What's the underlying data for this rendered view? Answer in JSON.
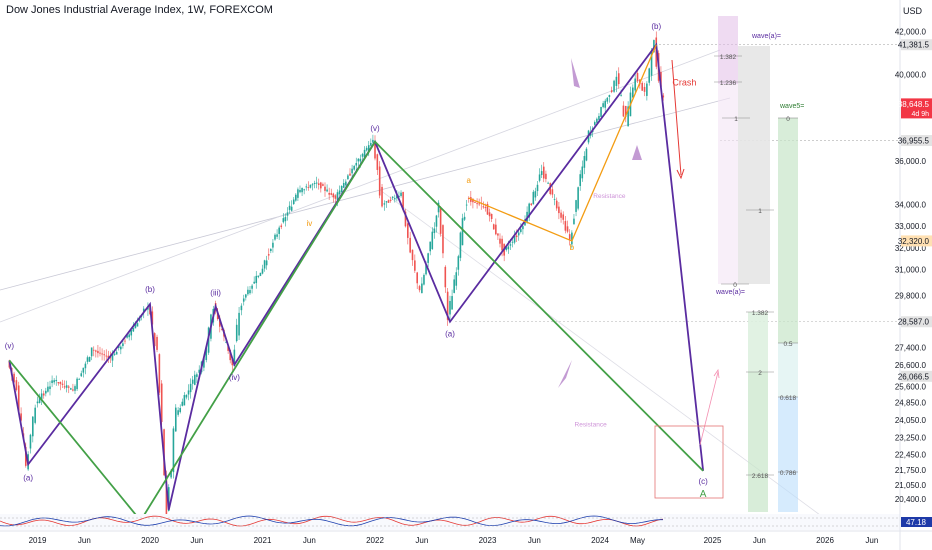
{
  "header": {
    "symbol_title": "Dow Jones Industrial Average Index, 1W, FOREXCOM"
  },
  "price_axis": {
    "currency": "USD"
  },
  "chart_data": {
    "type": "line",
    "title": "Dow Jones Industrial Average Index, 1W, FOREXCOM",
    "ylim": [
      19800,
      42800
    ],
    "xlim": [
      "2018-09",
      "2026-09"
    ],
    "x_ticks": [
      "2019",
      "Jun",
      "2020",
      "Jun",
      "2021",
      "Jun",
      "2022",
      "Jun",
      "2023",
      "Jun",
      "2024",
      "May",
      "2025",
      "Jun",
      "2026",
      "Jun"
    ],
    "y_ticks": [
      "42,000.0",
      "40,000.0",
      "36,000.0",
      "34,000.0",
      "33,000.0",
      "32,000.0",
      "31,000.0",
      "29,800.0",
      "27,400.0",
      "26,600.0",
      "25,600.0",
      "24,850.0",
      "24,050.0",
      "23,250.0",
      "22,450.0",
      "21,750.0",
      "21,050.0",
      "20,400.0"
    ],
    "price_tags": [
      {
        "label": "41,381.5",
        "color": "#e3e3e3",
        "text_color": "#131722"
      },
      {
        "label": "38,648.5",
        "sub": "4d 9h",
        "color": "#f23645",
        "text_color": "#ffffff"
      },
      {
        "label": "36,955.5",
        "color": "#e3e3e3",
        "text_color": "#131722"
      },
      {
        "label": "32,320.0",
        "color": "#ffe0b2",
        "text_color": "#131722"
      },
      {
        "label": "28,587.0",
        "color": "#e3e3e3",
        "text_color": "#131722"
      },
      {
        "label": "26,066.5",
        "color": "#e3e3e3",
        "text_color": "#131722"
      }
    ],
    "price_series": [
      {
        "x": "2018-10",
        "y": 26800
      },
      {
        "x": "2018-11",
        "y": 25500
      },
      {
        "x": "2018-12",
        "y": 22000
      },
      {
        "x": "2019-01",
        "y": 24800
      },
      {
        "x": "2019-03",
        "y": 25900
      },
      {
        "x": "2019-05",
        "y": 25400
      },
      {
        "x": "2019-07",
        "y": 27300
      },
      {
        "x": "2019-09",
        "y": 26900
      },
      {
        "x": "2019-11",
        "y": 28000
      },
      {
        "x": "2020-01",
        "y": 29400
      },
      {
        "x": "2020-02",
        "y": 27000
      },
      {
        "x": "2020-03",
        "y": 19900
      },
      {
        "x": "2020-04",
        "y": 24300
      },
      {
        "x": "2020-06",
        "y": 26000
      },
      {
        "x": "2020-07",
        "y": 26800
      },
      {
        "x": "2020-08",
        "y": 29300
      },
      {
        "x": "2020-10",
        "y": 26600
      },
      {
        "x": "2020-11",
        "y": 29600
      },
      {
        "x": "2021-01",
        "y": 30900
      },
      {
        "x": "2021-03",
        "y": 32900
      },
      {
        "x": "2021-05",
        "y": 34600
      },
      {
        "x": "2021-07",
        "y": 35000
      },
      {
        "x": "2021-09",
        "y": 34300
      },
      {
        "x": "2021-11",
        "y": 35800
      },
      {
        "x": "2022-01",
        "y": 36900
      },
      {
        "x": "2022-02",
        "y": 34000
      },
      {
        "x": "2022-04",
        "y": 34500
      },
      {
        "x": "2022-05",
        "y": 31800
      },
      {
        "x": "2022-06",
        "y": 29900
      },
      {
        "x": "2022-08",
        "y": 33900
      },
      {
        "x": "2022-09",
        "y": 28700
      },
      {
        "x": "2022-11",
        "y": 34300
      },
      {
        "x": "2023-01",
        "y": 33900
      },
      {
        "x": "2023-03",
        "y": 31800
      },
      {
        "x": "2023-05",
        "y": 33000
      },
      {
        "x": "2023-07",
        "y": 35600
      },
      {
        "x": "2023-10",
        "y": 32400
      },
      {
        "x": "2023-12",
        "y": 37300
      },
      {
        "x": "2024-02",
        "y": 38900
      },
      {
        "x": "2024-03",
        "y": 39800
      },
      {
        "x": "2024-04",
        "y": 37800
      },
      {
        "x": "2024-05",
        "y": 40000
      },
      {
        "x": "2024-06",
        "y": 39100
      },
      {
        "x": "2024-07",
        "y": 41381.5
      },
      {
        "x": "2024-08",
        "y": 38648.5
      }
    ],
    "wave_lines": [
      {
        "name": "purple",
        "color": "#5a2ca0",
        "points": [
          {
            "x": "2018-10",
            "y": 26800
          },
          {
            "x": "2018-12",
            "y": 22000
          },
          {
            "x": "2020-01",
            "y": 29400
          },
          {
            "x": "2020-03",
            "y": 19900
          },
          {
            "x": "2020-08",
            "y": 29300
          },
          {
            "x": "2020-10",
            "y": 26600
          },
          {
            "x": "2022-01",
            "y": 36900
          },
          {
            "x": "2022-09",
            "y": 28587
          },
          {
            "x": "2024-07",
            "y": 41381.5
          },
          {
            "x": "2024-12",
            "y": 21700
          }
        ]
      },
      {
        "name": "green",
        "color": "#43a047",
        "points": [
          {
            "x": "2018-10",
            "y": 26800
          },
          {
            "x": "2019-12",
            "y": 19400
          },
          {
            "x": "2022-01",
            "y": 36900
          },
          {
            "x": "2024-12",
            "y": 21700
          }
        ]
      },
      {
        "name": "orange",
        "color": "#f39c12",
        "points": [
          {
            "x": "2022-11",
            "y": 34300
          },
          {
            "x": "2023-10",
            "y": 32320
          },
          {
            "x": "2024-07",
            "y": 41381.5
          }
        ]
      }
    ],
    "wave_labels": [
      {
        "text": "(v)",
        "x": "2018-10",
        "y": 27350,
        "color": "#5a2ca0"
      },
      {
        "text": "(a)",
        "x": "2018-12",
        "y": 21250,
        "color": "#5a2ca0"
      },
      {
        "text": "(b)",
        "x": "2020-01",
        "y": 29950,
        "color": "#5a2ca0"
      },
      {
        "text": "(iii)",
        "x": "2020-08",
        "y": 29800,
        "color": "#5a2ca0"
      },
      {
        "text": "(iv)",
        "x": "2020-10",
        "y": 25900,
        "color": "#5a2ca0"
      },
      {
        "text": "(v)",
        "x": "2022-01",
        "y": 37400,
        "color": "#5a2ca0"
      },
      {
        "text": "(a)",
        "x": "2022-09",
        "y": 27900,
        "color": "#5a2ca0"
      },
      {
        "text": "(b)",
        "x": "2024-07",
        "y": 42100,
        "color": "#5a2ca0"
      },
      {
        "text": "(c)",
        "x": "2024-12",
        "y": 21100,
        "color": "#5a2ca0"
      },
      {
        "text": "A",
        "x": "2024-12",
        "y": 20500,
        "color": "#43a047"
      },
      {
        "text": "a",
        "x": "2022-11",
        "y": 35000,
        "color": "#f39c12"
      },
      {
        "text": "b",
        "x": "2023-10",
        "y": 31900,
        "color": "#f39c12"
      },
      {
        "text": "iv",
        "x": "2021-06",
        "y": 33000,
        "color": "#f39c12"
      }
    ],
    "annotations": [
      {
        "text": "Crash",
        "x": "2024-10",
        "y": 39500,
        "color": "#e53935"
      },
      {
        "text": "Resistance",
        "x": "2024-02",
        "y": 34300,
        "color": "#ce93d8"
      },
      {
        "text": "Resistance",
        "x": "2023-12",
        "y": 23750,
        "color": "#ce93d8"
      }
    ],
    "fib_wave_a": {
      "label": "wave(a)=",
      "label_bottom": "wave(a)=",
      "levels": [
        "1.382",
        "1.236",
        "1",
        "0",
        "1",
        "1.382",
        "2",
        "2.618"
      ]
    },
    "fib_wave5": {
      "label": "wave5=",
      "levels": [
        "0",
        "0.5",
        "0.618",
        "0.786"
      ]
    },
    "oscillator": {
      "values": [
        "47.18"
      ]
    }
  }
}
